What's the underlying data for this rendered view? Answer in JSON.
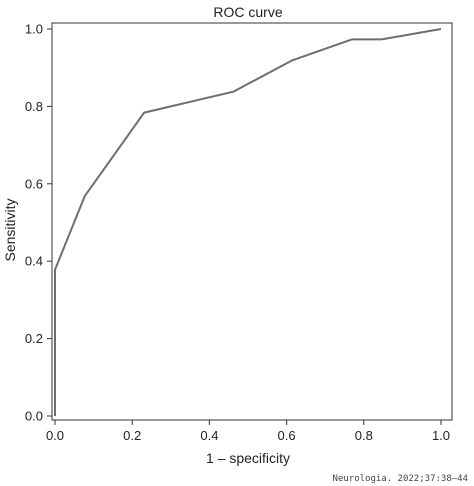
{
  "chart_data": {
    "type": "line",
    "title": "ROC curve",
    "xlabel": "1 – specificity",
    "ylabel": "Sensitivity",
    "xlim": [
      0,
      1
    ],
    "ylim": [
      0,
      1
    ],
    "x_ticks": [
      0.0,
      0.2,
      0.4,
      0.6,
      0.8,
      1.0
    ],
    "y_ticks": [
      0.0,
      0.2,
      0.4,
      0.6,
      0.8,
      1.0
    ],
    "x_tick_labels": [
      "0.0",
      "0.2",
      "0.4",
      "0.6",
      "0.8",
      "1.0"
    ],
    "y_tick_labels": [
      "0.0",
      "0.2",
      "0.4",
      "0.6",
      "0.8",
      "1.0"
    ],
    "grid": false,
    "series": [
      {
        "color": "#6e6e6e",
        "x": [
          0.0,
          0.0,
          0.077,
          0.231,
          0.462,
          0.615,
          0.769,
          0.846,
          1.0
        ],
        "y": [
          0.0,
          0.378,
          0.568,
          0.784,
          0.838,
          0.919,
          0.973,
          0.973,
          1.0
        ]
      }
    ]
  },
  "footer": {
    "credit": "Neurologia. 2022;37:38–44"
  }
}
